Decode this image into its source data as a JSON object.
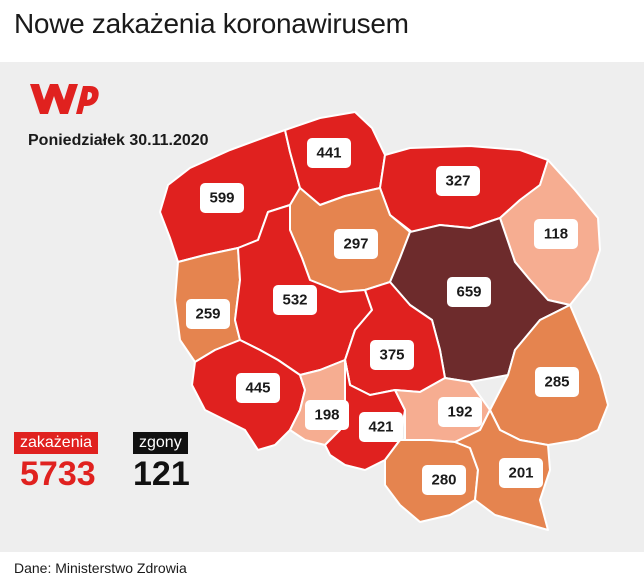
{
  "title": "Nowe zakażenia koronawirusem",
  "date": "Poniedziałek 30.11.2020",
  "totals": {
    "infections_label": "zakażenia",
    "infections_value": "5733",
    "deaths_label": "zgony",
    "deaths_value": "121"
  },
  "source": "Dane: Ministerstwo Zdrowia",
  "colors": {
    "brand": "#e0211f",
    "high": "#e0211f",
    "mid": "#e5844f",
    "low": "#f6ad91",
    "max": "#6d2b2c"
  },
  "regions": [
    {
      "name": "zachodniopomorskie",
      "value": "599",
      "fill": "#e0211f"
    },
    {
      "name": "pomorskie",
      "value": "441",
      "fill": "#e0211f"
    },
    {
      "name": "warmińsko-mazurskie",
      "value": "327",
      "fill": "#e0211f"
    },
    {
      "name": "podlaskie",
      "value": "118",
      "fill": "#f6ad91"
    },
    {
      "name": "kujawsko-pomorskie",
      "value": "297",
      "fill": "#e5844f"
    },
    {
      "name": "mazowieckie",
      "value": "659",
      "fill": "#6d2b2c"
    },
    {
      "name": "lubuskie",
      "value": "259",
      "fill": "#e5844f"
    },
    {
      "name": "wielkopolskie",
      "value": "532",
      "fill": "#e0211f"
    },
    {
      "name": "łódzkie",
      "value": "375",
      "fill": "#e0211f"
    },
    {
      "name": "lubelskie",
      "value": "285",
      "fill": "#e5844f"
    },
    {
      "name": "dolnośląskie",
      "value": "445",
      "fill": "#e0211f"
    },
    {
      "name": "opolskie",
      "value": "198",
      "fill": "#f6ad91"
    },
    {
      "name": "śląskie",
      "value": "421",
      "fill": "#e0211f"
    },
    {
      "name": "świętokrzyskie",
      "value": "192",
      "fill": "#f6ad91"
    },
    {
      "name": "małopolskie",
      "value": "280",
      "fill": "#e5844f"
    },
    {
      "name": "podkarpackie",
      "value": "201",
      "fill": "#e5844f"
    }
  ]
}
